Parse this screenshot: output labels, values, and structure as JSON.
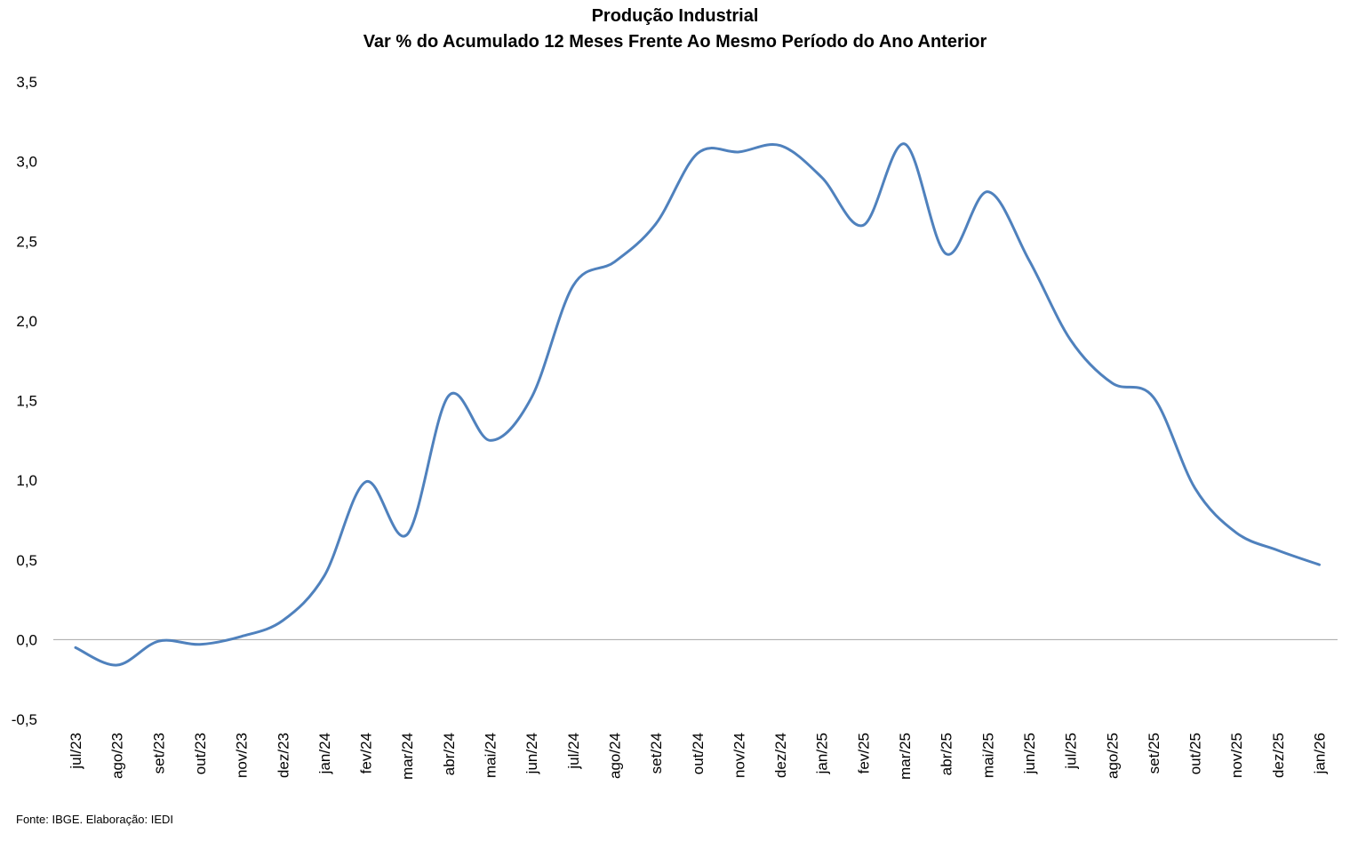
{
  "chart_data": {
    "type": "line",
    "title": "Produção Industrial",
    "subtitle": "Var % do Acumulado 12 Meses Frente Ao Mesmo Período do Ano Anterior",
    "xlabel": "",
    "ylabel": "",
    "ylim": [
      -0.5,
      3.5
    ],
    "yticks": [
      -0.5,
      0.0,
      0.5,
      1.0,
      1.5,
      2.0,
      2.5,
      3.0,
      3.5
    ],
    "ytick_labels": [
      "-0,5",
      "0,0",
      "0,5",
      "1,0",
      "1,5",
      "2,0",
      "2,5",
      "3,0",
      "3,5"
    ],
    "categories": [
      "jul/23",
      "ago/23",
      "set/23",
      "out/23",
      "nov/23",
      "dez/23",
      "jan/24",
      "fev/24",
      "mar/24",
      "abr/24",
      "mai/24",
      "jun/24",
      "jul/24",
      "ago/24",
      "set/24",
      "out/24",
      "nov/24",
      "dez/24",
      "jan/25",
      "fev/25",
      "mar/25",
      "abr/25",
      "mai/25",
      "jun/25",
      "jul/25",
      "ago/25",
      "set/25",
      "out/25",
      "nov/25",
      "dez/25",
      "jan/26"
    ],
    "series": [
      {
        "name": "Produção Industrial",
        "color": "#4f81bd",
        "values": [
          -0.05,
          -0.16,
          -0.01,
          -0.03,
          0.02,
          0.12,
          0.4,
          0.99,
          0.66,
          1.53,
          1.25,
          1.52,
          2.22,
          2.37,
          2.61,
          3.05,
          3.06,
          3.1,
          2.9,
          2.6,
          3.11,
          2.42,
          2.81,
          2.38,
          1.88,
          1.61,
          1.52,
          0.95,
          0.67,
          0.56,
          0.47
        ]
      }
    ],
    "grid": false,
    "legend": "none"
  },
  "footer": {
    "source": "Fonte: IBGE. Elaboração: IEDI"
  }
}
